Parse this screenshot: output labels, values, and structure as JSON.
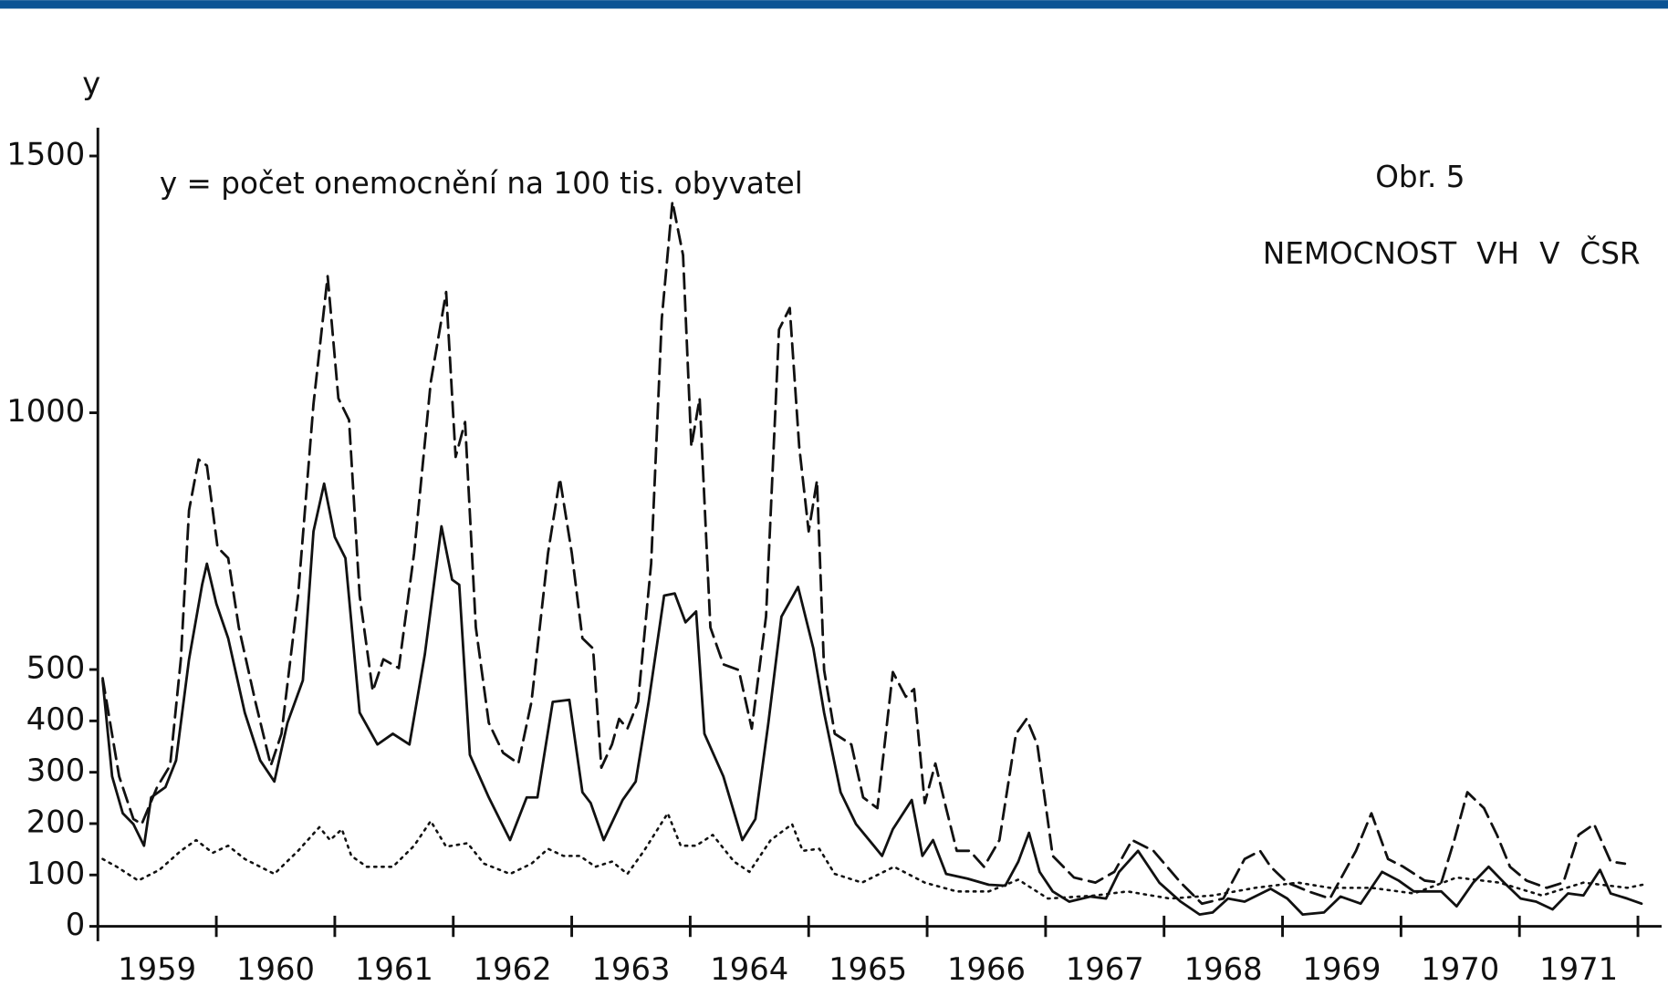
{
  "chart_data": {
    "type": "line",
    "title": "NEMOCNOST VH V ČSR",
    "figure_label": "Obr. 5",
    "ylabel": "y",
    "annotation": "y = počet onemocnění na 100 tis. obyvatel",
    "xlim": [
      1959,
      1972.2
    ],
    "ylim": [
      0,
      1555
    ],
    "yticks": [
      0,
      100,
      200,
      300,
      400,
      500,
      1000,
      1500
    ],
    "xticks": [
      {
        "value": 1959.5,
        "label": "1959"
      },
      {
        "value": 1960.5,
        "label": "1960"
      },
      {
        "value": 1961.5,
        "label": "1961"
      },
      {
        "value": 1962.5,
        "label": "1962"
      },
      {
        "value": 1963.5,
        "label": "1963"
      },
      {
        "value": 1964.5,
        "label": "1964"
      },
      {
        "value": 1965.5,
        "label": "1965"
      },
      {
        "value": 1966.5,
        "label": "1966"
      },
      {
        "value": 1967.5,
        "label": "1967"
      },
      {
        "value": 1968.5,
        "label": "1968"
      },
      {
        "value": 1969.5,
        "label": "1969"
      },
      {
        "value": 1970.5,
        "label": "1970"
      },
      {
        "value": 1971.5,
        "label": "1971"
      }
    ],
    "xminorticks": [
      1960,
      1961,
      1962,
      1963,
      1964,
      1965,
      1966,
      1967,
      1968,
      1969,
      1970,
      1971,
      1972
    ],
    "grid": false,
    "series": [
      {
        "color": "#111111",
        "dash": "dashed",
        "x": [
          1959.04,
          1959.18,
          1959.3,
          1959.37,
          1959.5,
          1959.61,
          1959.7,
          1959.77,
          1959.85,
          1959.92,
          1960.01,
          1960.1,
          1960.19,
          1960.33,
          1960.46,
          1960.55,
          1960.69,
          1960.82,
          1960.94,
          1961.03,
          1961.12,
          1961.21,
          1961.32,
          1961.41,
          1961.54,
          1961.67,
          1961.81,
          1961.94,
          1962.02,
          1962.1,
          1962.19,
          1962.3,
          1962.42,
          1962.55,
          1962.66,
          1962.8,
          1962.9,
          1963.0,
          1963.09,
          1963.18,
          1963.25,
          1963.34,
          1963.4,
          1963.47,
          1963.56,
          1963.67,
          1963.76,
          1963.85,
          1963.94,
          1964.01,
          1964.08,
          1964.17,
          1964.28,
          1964.41,
          1964.52,
          1964.64,
          1964.75,
          1964.84,
          1964.92,
          1965.0,
          1965.07,
          1965.13,
          1965.22,
          1965.36,
          1965.46,
          1965.58,
          1965.71,
          1965.82,
          1965.89,
          1965.98,
          1966.07,
          1966.16,
          1966.25,
          1966.36,
          1966.48,
          1966.61,
          1966.75,
          1966.84,
          1966.93,
          1967.06,
          1967.24,
          1967.42,
          1967.58,
          1967.73,
          1967.91,
          1968.14,
          1968.32,
          1968.5,
          1968.68,
          1968.81,
          1968.9,
          1969.04,
          1969.22,
          1969.4,
          1969.62,
          1969.75,
          1969.89,
          1970.02,
          1970.2,
          1970.34,
          1970.45,
          1970.56,
          1970.7,
          1970.81,
          1970.92,
          1971.06,
          1971.23,
          1971.37,
          1971.5,
          1971.63,
          1971.77,
          1971.89
        ],
        "values": [
          483,
          292,
          209,
          199,
          271,
          313,
          520,
          810,
          909,
          897,
          738,
          717,
          582,
          437,
          313,
          375,
          644,
          1017,
          1266,
          1028,
          986,
          644,
          458,
          520,
          503,
          727,
          1059,
          1235,
          914,
          982,
          582,
          396,
          338,
          317,
          437,
          727,
          872,
          727,
          561,
          541,
          309,
          354,
          404,
          385,
          437,
          706,
          1183,
          1411,
          1307,
          934,
          1028,
          582,
          510,
          499,
          385,
          603,
          1162,
          1204,
          934,
          769,
          868,
          499,
          375,
          354,
          251,
          230,
          495,
          447,
          462,
          240,
          317,
          230,
          147,
          147,
          116,
          168,
          375,
          404,
          354,
          137,
          95,
          85,
          106,
          168,
          147,
          85,
          44,
          54,
          131,
          147,
          116,
          85,
          68,
          54,
          147,
          220,
          131,
          116,
          89,
          85,
          168,
          261,
          230,
          178,
          116,
          89,
          75,
          85,
          178,
          199,
          126,
          122
        ]
      },
      {
        "color": "#111111",
        "dash": "solid",
        "x": [
          1959.04,
          1959.12,
          1959.21,
          1959.3,
          1959.39,
          1959.45,
          1959.57,
          1959.66,
          1959.77,
          1959.88,
          1959.92,
          1960.0,
          1960.1,
          1960.24,
          1960.37,
          1960.49,
          1960.6,
          1960.73,
          1960.82,
          1960.91,
          1961.0,
          1961.09,
          1961.21,
          1961.36,
          1961.49,
          1961.63,
          1961.76,
          1961.9,
          1961.99,
          1962.05,
          1962.14,
          1962.3,
          1962.48,
          1962.62,
          1962.71,
          1962.84,
          1962.98,
          1963.09,
          1963.16,
          1963.27,
          1963.43,
          1963.54,
          1963.65,
          1963.78,
          1963.87,
          1963.96,
          1964.05,
          1964.12,
          1964.28,
          1964.44,
          1964.55,
          1964.66,
          1964.77,
          1964.91,
          1965.04,
          1965.13,
          1965.27,
          1965.4,
          1965.55,
          1965.62,
          1965.71,
          1965.87,
          1965.96,
          1966.05,
          1966.16,
          1966.34,
          1966.52,
          1966.66,
          1966.77,
          1966.86,
          1966.95,
          1967.06,
          1967.2,
          1967.38,
          1967.51,
          1967.62,
          1967.78,
          1967.96,
          1968.14,
          1968.3,
          1968.41,
          1968.54,
          1968.68,
          1968.9,
          1969.04,
          1969.17,
          1969.35,
          1969.49,
          1969.66,
          1969.84,
          1969.98,
          1970.11,
          1970.34,
          1970.47,
          1970.61,
          1970.74,
          1970.87,
          1971.01,
          1971.14,
          1971.28,
          1971.41,
          1971.54,
          1971.68,
          1971.77,
          1971.91,
          1972.03
        ],
        "values": [
          479,
          292,
          220,
          199,
          157,
          251,
          271,
          323,
          520,
          665,
          706,
          628,
          561,
          416,
          323,
          282,
          396,
          479,
          769,
          862,
          758,
          717,
          416,
          354,
          375,
          354,
          530,
          779,
          675,
          665,
          334,
          251,
          168,
          251,
          251,
          437,
          441,
          261,
          240,
          168,
          246,
          282,
          437,
          644,
          648,
          592,
          613,
          375,
          292,
          168,
          209,
          396,
          603,
          661,
          541,
          416,
          261,
          199,
          157,
          137,
          189,
          246,
          137,
          168,
          102,
          93,
          81,
          79,
          126,
          182,
          106,
          68,
          48,
          58,
          54,
          106,
          147,
          85,
          48,
          23,
          27,
          54,
          48,
          73,
          54,
          23,
          27,
          58,
          44,
          106,
          89,
          68,
          68,
          39,
          85,
          116,
          85,
          54,
          48,
          33,
          64,
          60,
          110,
          64,
          54,
          44
        ]
      },
      {
        "color": "#111111",
        "dash": "dotted",
        "x": [
          1959.04,
          1959.16,
          1959.34,
          1959.52,
          1959.7,
          1959.83,
          1959.97,
          1960.1,
          1960.24,
          1960.49,
          1960.69,
          1960.87,
          1960.96,
          1961.06,
          1961.14,
          1961.27,
          1961.49,
          1961.67,
          1961.81,
          1961.94,
          1962.12,
          1962.26,
          1962.48,
          1962.66,
          1962.8,
          1962.93,
          1963.07,
          1963.2,
          1963.34,
          1963.47,
          1963.61,
          1963.81,
          1963.92,
          1964.05,
          1964.19,
          1964.37,
          1964.5,
          1964.68,
          1964.86,
          1964.95,
          1965.09,
          1965.22,
          1965.45,
          1965.72,
          1965.98,
          1966.25,
          1966.52,
          1966.77,
          1967.02,
          1967.42,
          1967.69,
          1968.05,
          1968.41,
          1968.77,
          1969.13,
          1969.4,
          1969.75,
          1970.11,
          1970.47,
          1970.83,
          1971.19,
          1971.54,
          1971.91,
          1972.04
        ],
        "values": [
          131,
          116,
          89,
          110,
          147,
          168,
          143,
          157,
          131,
          102,
          147,
          193,
          168,
          189,
          137,
          116,
          116,
          157,
          205,
          155,
          162,
          122,
          102,
          122,
          151,
          137,
          137,
          116,
          126,
          102,
          147,
          220,
          157,
          157,
          178,
          126,
          106,
          168,
          199,
          147,
          151,
          102,
          85,
          116,
          85,
          68,
          68,
          91,
          54,
          60,
          68,
          54,
          60,
          75,
          85,
          75,
          75,
          64,
          95,
          85,
          60,
          85,
          75,
          81
        ]
      }
    ]
  }
}
